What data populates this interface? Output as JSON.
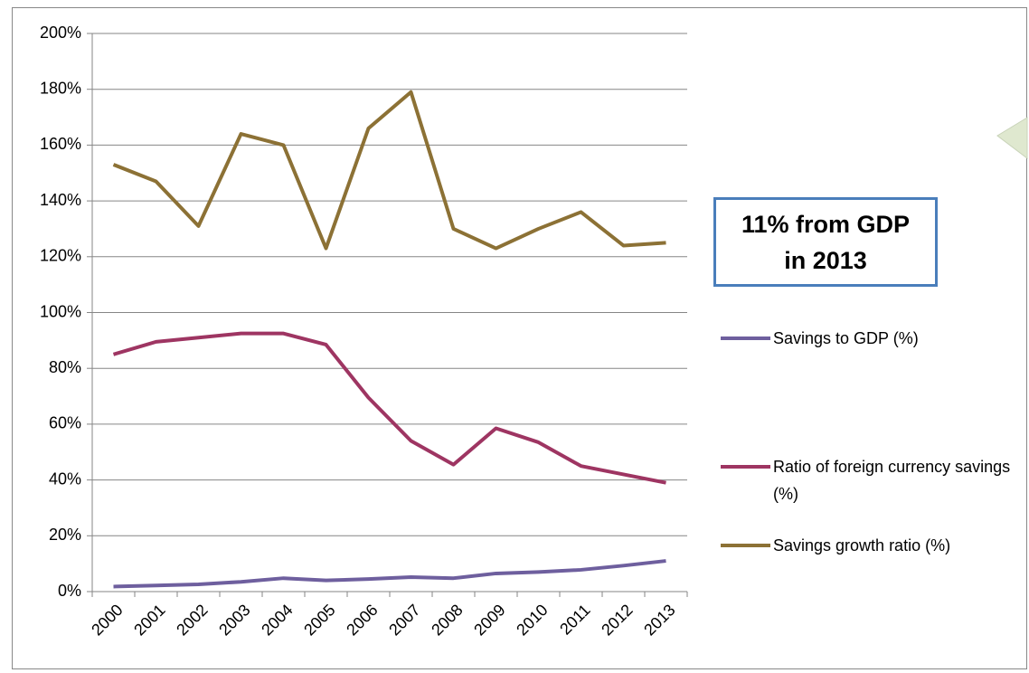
{
  "chart_data": {
    "type": "line",
    "categories": [
      "2000",
      "2001",
      "2002",
      "2003",
      "2004",
      "2005",
      "2006",
      "2007",
      "2008",
      "2009",
      "2010",
      "2011",
      "2012",
      "2013"
    ],
    "series": [
      {
        "name": "Savings to GDP (%)",
        "color": "#6e5f9e",
        "values": [
          1.8,
          2.2,
          2.6,
          3.5,
          4.8,
          4,
          4.5,
          5.2,
          4.8,
          6.5,
          7,
          7.8,
          9.3,
          11
        ]
      },
      {
        "name": "Ratio of foreign currency savings (%)",
        "color": "#9e3562",
        "values": [
          85,
          89.5,
          91,
          92.5,
          92.5,
          88.5,
          69.5,
          54,
          45.5,
          58.5,
          53.5,
          45,
          42,
          39
        ]
      },
      {
        "name": "Savings growth ratio (%)",
        "color": "#8c7135",
        "values": [
          153,
          147,
          131,
          164,
          160,
          123,
          166,
          179,
          130,
          123,
          130,
          136,
          124,
          125
        ]
      }
    ],
    "ylim": [
      0,
      200
    ],
    "yticks": [
      {
        "value": 0,
        "label": "0%"
      },
      {
        "value": 20,
        "label": "20%"
      },
      {
        "value": 40,
        "label": "40%"
      },
      {
        "value": 60,
        "label": "60%"
      },
      {
        "value": 80,
        "label": "80%"
      },
      {
        "value": 100,
        "label": "100%"
      },
      {
        "value": 120,
        "label": "120%"
      },
      {
        "value": 140,
        "label": "140%"
      },
      {
        "value": 160,
        "label": "160%"
      },
      {
        "value": 180,
        "label": "180%"
      },
      {
        "value": 200,
        "label": "200%"
      }
    ],
    "grid": true,
    "legend": "right",
    "annotation": "11% from GDP in 2013"
  }
}
